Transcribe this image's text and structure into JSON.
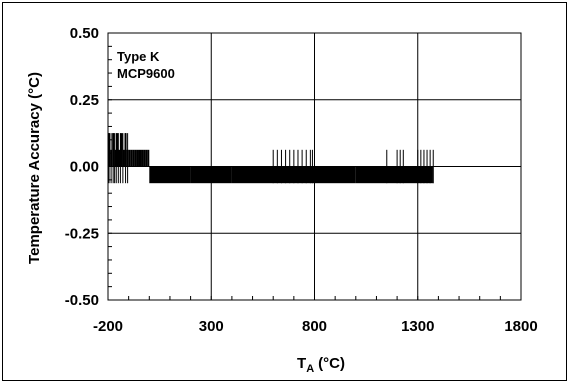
{
  "chart_data": {
    "type": "line",
    "annotation": [
      "Type K",
      "MCP9600"
    ],
    "xlabel_main": "T",
    "xlabel_sub": "A",
    "xlabel_unit": "(°C)",
    "ylabel": "Temperature Accuracy (°C)",
    "xlim": [
      -200,
      1800
    ],
    "ylim": [
      -0.5,
      0.5
    ],
    "xticks": [
      -200,
      300,
      800,
      1300,
      1800
    ],
    "xtick_labels": [
      "-200",
      "300",
      "800",
      "1300",
      "1800"
    ],
    "yticks": [
      0.5,
      0.25,
      0.0,
      -0.25,
      -0.5
    ],
    "ytick_labels": [
      "0.50",
      "0.25",
      "0.00",
      "-0.25",
      "-0.50"
    ],
    "x_minor_step": 100,
    "y_minor_step": 0.05,
    "grid": true,
    "series": [
      {
        "color": "#000000",
        "points": [
          {
            "x": -200,
            "y": 0.125
          },
          {
            "x": -190,
            "y": 0.0625
          },
          {
            "x": -180,
            "y": 0.125
          },
          {
            "x": -170,
            "y": 0.0625
          },
          {
            "x": -160,
            "y": 0.125
          },
          {
            "x": -150,
            "y": 0.0625
          },
          {
            "x": -140,
            "y": 0.125
          },
          {
            "x": -130,
            "y": 0.0625
          },
          {
            "x": -120,
            "y": 0.125
          },
          {
            "x": -110,
            "y": 0.0625
          },
          {
            "x": -100,
            "y": 0.0625
          },
          {
            "x": -90,
            "y": 0.0625
          },
          {
            "x": -80,
            "y": 0.0625
          },
          {
            "x": -70,
            "y": 0.0625
          },
          {
            "x": -60,
            "y": 0.0625
          },
          {
            "x": -50,
            "y": 0.0625
          },
          {
            "x": -40,
            "y": 0.0625
          },
          {
            "x": -30,
            "y": 0.0625
          },
          {
            "x": -20,
            "y": 0.0625
          },
          {
            "x": -10,
            "y": 0.0625
          },
          {
            "x": 0,
            "y": -0.0625
          },
          {
            "x": 200,
            "y": -0.0625
          },
          {
            "x": 400,
            "y": -0.0625
          },
          {
            "x": 600,
            "y": -0.0625
          },
          {
            "x": 800,
            "y": -0.0625
          },
          {
            "x": 1000,
            "y": -0.0625
          },
          {
            "x": 1200,
            "y": -0.0625
          },
          {
            "x": 1372,
            "y": -0.0625
          }
        ]
      }
    ]
  }
}
